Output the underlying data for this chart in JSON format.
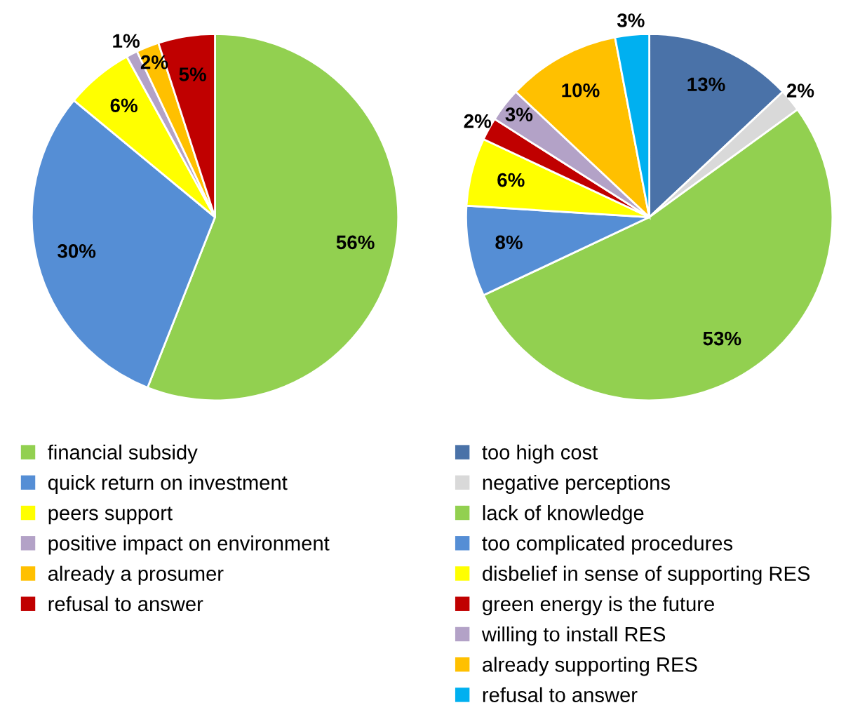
{
  "chart_data": [
    {
      "type": "pie",
      "categories": [
        "financial subsidy",
        "quick return on investment",
        "peers support",
        "positive impact on environment",
        "already a prosumer",
        "refusal to answer"
      ],
      "values": [
        56,
        30,
        6,
        1,
        2,
        5
      ],
      "colors": [
        "#92d050",
        "#558ed5",
        "#ffff00",
        "#b3a2c7",
        "#ffc000",
        "#c00000"
      ],
      "value_labels": [
        "56%",
        "30%",
        "6%",
        "1%",
        "2%",
        "5%"
      ],
      "legend": "bottom"
    },
    {
      "type": "pie",
      "categories": [
        "too high cost",
        "negative perceptions",
        "lack of knowledge",
        "too complicated procedures",
        "disbelief in sense of supporting RES",
        "green energy is the future",
        "willing to install RES",
        "already supporting RES",
        "refusal to answer"
      ],
      "values": [
        13,
        2,
        53,
        8,
        6,
        2,
        3,
        10,
        3
      ],
      "colors": [
        "#4a72a8",
        "#d9d9d9",
        "#92d050",
        "#558ed5",
        "#ffff00",
        "#c00000",
        "#b3a2c7",
        "#ffc000",
        "#00b0f0"
      ],
      "value_labels": [
        "13%",
        "2%",
        "53%",
        "8%",
        "6%",
        "2%",
        "3%",
        "10%",
        "3%"
      ],
      "legend": "bottom"
    }
  ]
}
